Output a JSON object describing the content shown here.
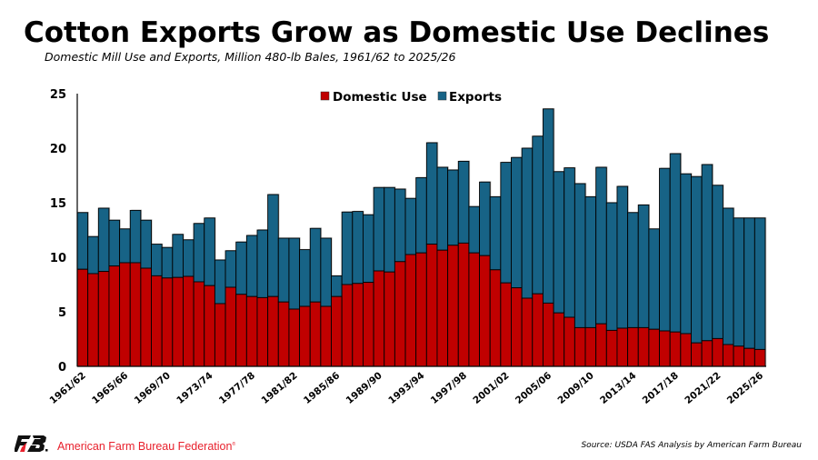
{
  "header": {
    "title": "Cotton Exports Grow as Domestic Use Declines",
    "subtitle": "Domestic Mill Use and Exports, Million 480-lb Bales, 1961/62 to 2025/26"
  },
  "footer": {
    "organization": "American Farm Bureau Federation",
    "source": "Source: USDA FAS Analysis by American Farm Bureau",
    "logo_icon": "afbf-logo-icon"
  },
  "chart_data": {
    "type": "bar",
    "stacked": true,
    "title": "Cotton Exports Grow as Domestic Use Declines",
    "subtitle": "Domestic Mill Use and Exports, Million 480-lb Bales, 1961/62 to 2025/26",
    "xlabel": "",
    "ylabel": "",
    "ylim": [
      0,
      25
    ],
    "yticks": [
      0,
      5,
      10,
      15,
      20,
      25
    ],
    "grid": false,
    "legend_position": "top-center",
    "colors": {
      "domestic": "#c00000",
      "exports": "#176386"
    },
    "categories": [
      "1961/62",
      "1962/63",
      "1963/64",
      "1964/65",
      "1965/66",
      "1966/67",
      "1967/68",
      "1968/69",
      "1969/70",
      "1970/71",
      "1971/72",
      "1972/73",
      "1973/74",
      "1974/75",
      "1975/76",
      "1976/77",
      "1977/78",
      "1978/79",
      "1979/80",
      "1980/81",
      "1981/82",
      "1982/83",
      "1983/84",
      "1984/85",
      "1985/86",
      "1986/87",
      "1987/88",
      "1988/89",
      "1989/90",
      "1990/91",
      "1991/92",
      "1992/93",
      "1993/94",
      "1994/95",
      "1995/96",
      "1996/97",
      "1997/98",
      "1998/99",
      "1999/00",
      "2000/01",
      "2001/02",
      "2002/03",
      "2003/04",
      "2004/05",
      "2005/06",
      "2006/07",
      "2007/08",
      "2008/09",
      "2009/10",
      "2010/11",
      "2011/12",
      "2012/13",
      "2013/14",
      "2014/15",
      "2015/16",
      "2016/17",
      "2017/18",
      "2018/19",
      "2019/20",
      "2020/21",
      "2021/22",
      "2022/23",
      "2023/24",
      "2024/25",
      "2025/26"
    ],
    "xtick_labels": [
      "1961/62",
      "1965/66",
      "1969/70",
      "1973/74",
      "1977/78",
      "1981/82",
      "1985/86",
      "1989/90",
      "1993/94",
      "1997/98",
      "2001/02",
      "2005/06",
      "2009/10",
      "2013/14",
      "2017/18",
      "2021/22",
      "2025/26"
    ],
    "series": [
      {
        "name": "Domestic Use",
        "key": "domestic",
        "values": [
          8.9,
          8.5,
          8.7,
          9.2,
          9.5,
          9.5,
          9.0,
          8.3,
          8.1,
          8.15,
          8.25,
          7.75,
          7.4,
          5.75,
          7.25,
          6.6,
          6.4,
          6.3,
          6.4,
          5.9,
          5.25,
          5.5,
          5.9,
          5.5,
          6.4,
          7.5,
          7.6,
          7.7,
          8.75,
          8.65,
          9.6,
          10.25,
          10.4,
          11.2,
          10.65,
          11.1,
          11.3,
          10.4,
          10.15,
          8.85,
          7.65,
          7.2,
          6.25,
          6.65,
          5.8,
          4.9,
          4.5,
          3.55,
          3.55,
          3.9,
          3.3,
          3.5,
          3.55,
          3.55,
          3.4,
          3.25,
          3.15,
          3.0,
          2.15,
          2.35,
          2.55,
          2.0,
          1.85,
          1.65,
          1.55
        ]
      },
      {
        "name": "Exports",
        "key": "exports",
        "values": [
          5.2,
          3.4,
          5.8,
          4.2,
          3.1,
          4.8,
          4.4,
          2.9,
          2.8,
          3.95,
          3.35,
          5.35,
          6.2,
          4.0,
          3.35,
          4.8,
          5.6,
          6.2,
          9.35,
          5.85,
          6.5,
          5.2,
          6.75,
          6.25,
          1.9,
          6.65,
          6.6,
          6.2,
          7.65,
          7.75,
          6.65,
          5.15,
          6.9,
          9.3,
          7.6,
          6.9,
          7.5,
          4.25,
          6.75,
          6.7,
          11.05,
          11.95,
          13.75,
          14.45,
          17.8,
          12.95,
          13.7,
          13.2,
          12.0,
          14.35,
          11.7,
          13.0,
          10.55,
          11.25,
          9.2,
          14.9,
          16.35,
          14.65,
          15.25,
          16.15,
          14.05,
          12.5,
          11.75,
          11.95,
          12.05
        ]
      }
    ]
  }
}
